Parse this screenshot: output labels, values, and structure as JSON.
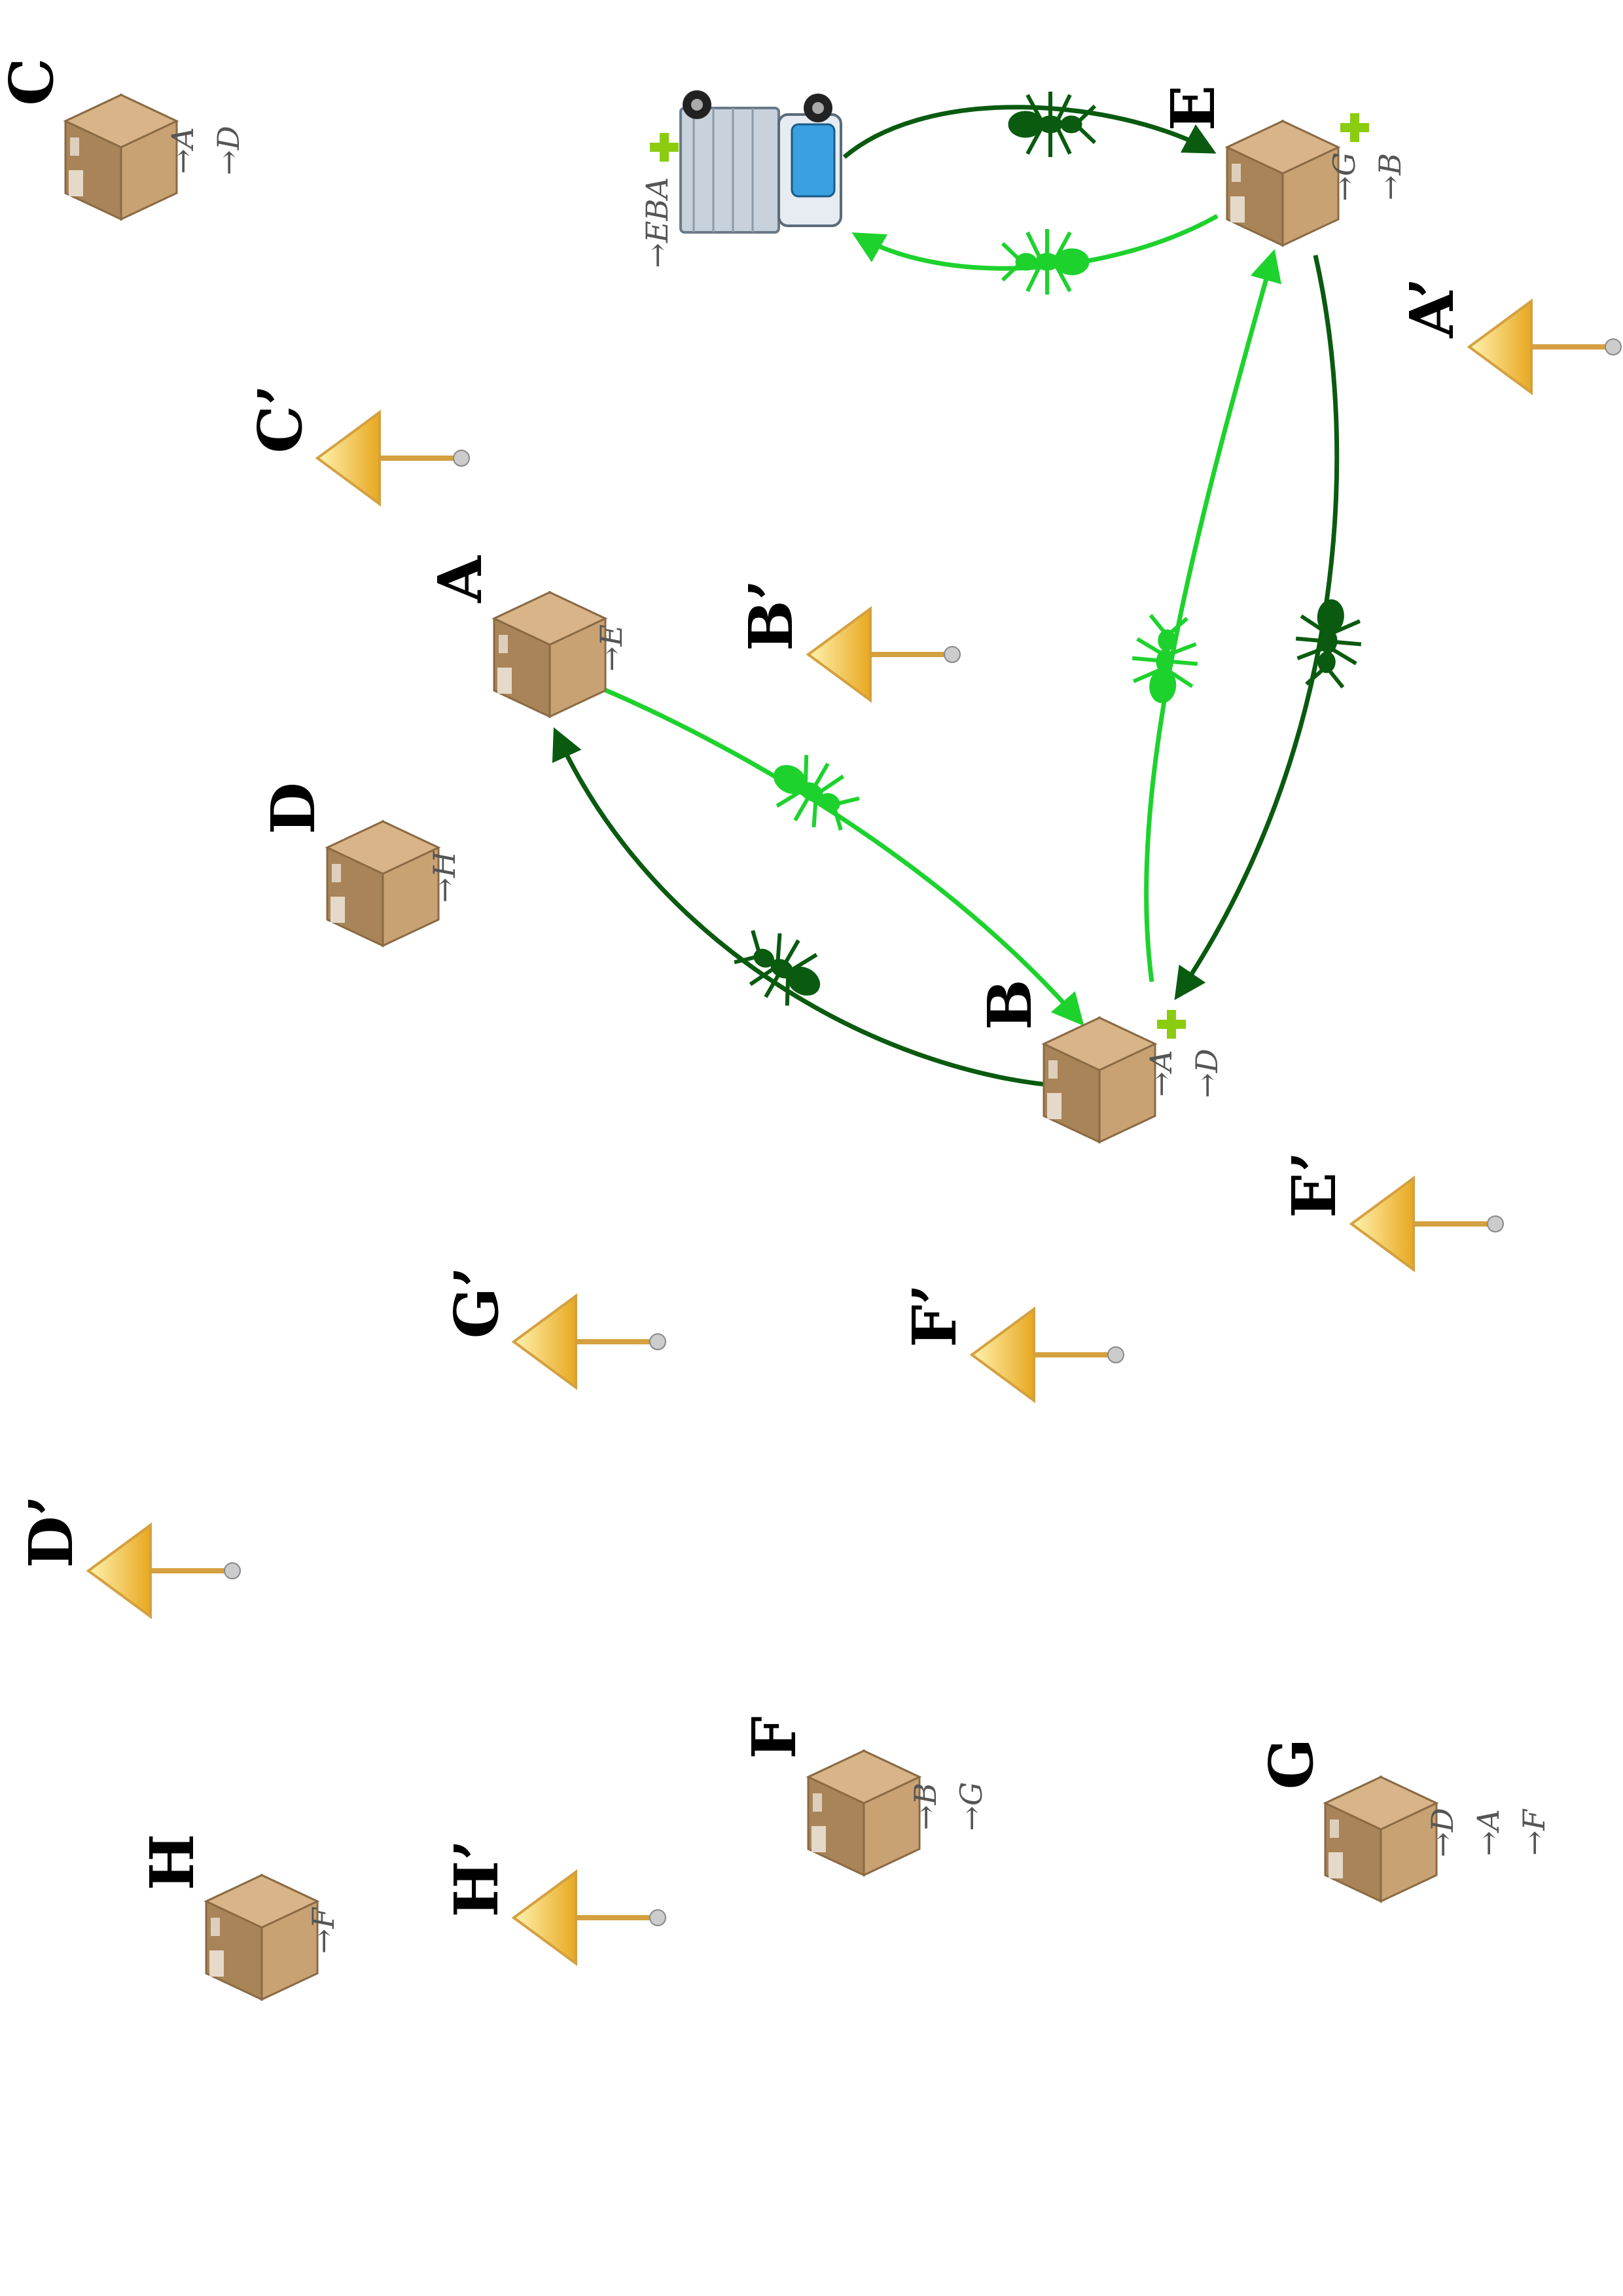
{
  "colors": {
    "dark_ant": "#0a5a10",
    "light_ant": "#1ed22e",
    "box": "#b08a60",
    "sign": "#f2c230",
    "plus": "#8ccc10"
  },
  "truck": {
    "icon": "truck-icon",
    "route": "→EBA",
    "has_plus": true
  },
  "depots": [
    {
      "id": "A",
      "label": "A",
      "icon": "box-icon",
      "destinations": [
        "→E"
      ],
      "has_plus": false
    },
    {
      "id": "B",
      "label": "B",
      "icon": "box-icon",
      "destinations": [
        "→A",
        "→D"
      ],
      "has_plus": true
    },
    {
      "id": "C",
      "label": "C",
      "icon": "box-icon",
      "destinations": [
        "→A",
        "→D"
      ],
      "has_plus": false
    },
    {
      "id": "D",
      "label": "D",
      "icon": "box-icon",
      "destinations": [
        "→H"
      ],
      "has_plus": false
    },
    {
      "id": "E",
      "label": "E",
      "icon": "box-icon",
      "destinations": [
        "→G",
        "→B"
      ],
      "has_plus": true
    },
    {
      "id": "F",
      "label": "F",
      "icon": "box-icon",
      "destinations": [
        "→B",
        "→G"
      ],
      "has_plus": false
    },
    {
      "id": "G",
      "label": "G",
      "icon": "box-icon",
      "destinations": [
        "→D",
        "→A",
        "→F"
      ],
      "has_plus": false
    },
    {
      "id": "H",
      "label": "H",
      "icon": "box-icon",
      "destinations": [
        "→F"
      ],
      "has_plus": false
    }
  ],
  "signs": [
    {
      "id": "A'",
      "label": "A’",
      "icon": "sign-icon"
    },
    {
      "id": "B'",
      "label": "B’",
      "icon": "sign-icon"
    },
    {
      "id": "C'",
      "label": "C’",
      "icon": "sign-icon"
    },
    {
      "id": "D'",
      "label": "D’",
      "icon": "sign-icon"
    },
    {
      "id": "E'",
      "label": "E’",
      "icon": "sign-icon"
    },
    {
      "id": "F'",
      "label": "F’",
      "icon": "sign-icon"
    },
    {
      "id": "G'",
      "label": "G’",
      "icon": "sign-icon"
    },
    {
      "id": "H'",
      "label": "H’",
      "icon": "sign-icon"
    }
  ],
  "edges": [
    {
      "from": "truck",
      "to": "E",
      "style": "dark",
      "icon": "ant-icon"
    },
    {
      "from": "E",
      "to": "truck",
      "style": "light",
      "icon": "ant-icon"
    },
    {
      "from": "B",
      "to": "E",
      "style": "light",
      "icon": "ant-icon"
    },
    {
      "from": "E",
      "to": "B",
      "style": "dark",
      "icon": "ant-icon"
    },
    {
      "from": "A",
      "to": "B",
      "style": "light",
      "icon": "ant-icon"
    },
    {
      "from": "B",
      "to": "A",
      "style": "dark",
      "icon": "ant-icon"
    }
  ]
}
